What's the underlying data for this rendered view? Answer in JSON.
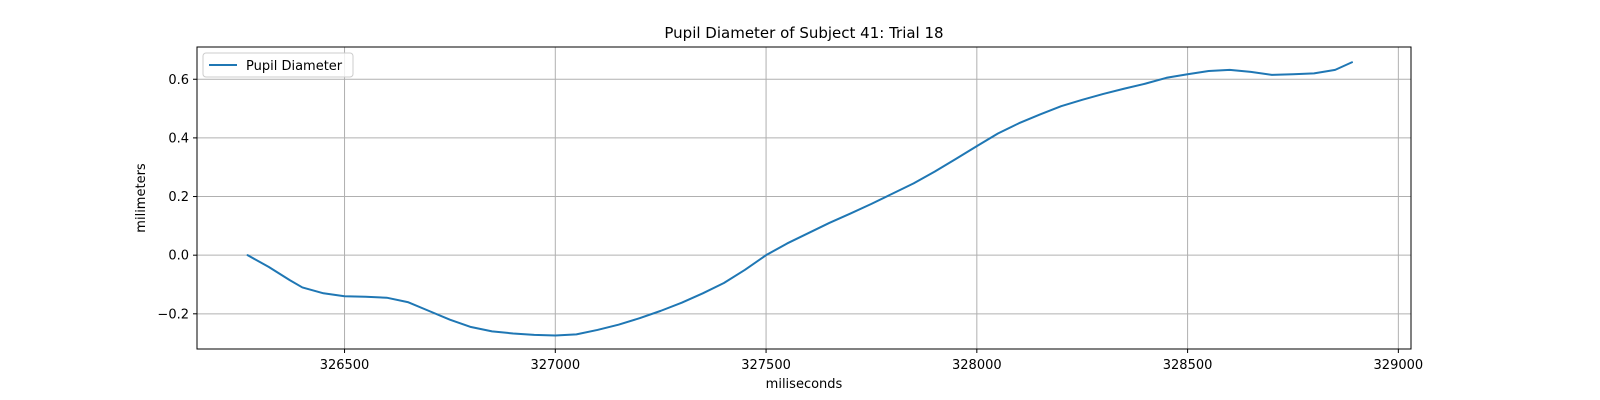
{
  "chart_data": {
    "type": "line",
    "title": "Pupil Diameter of Subject 41: Trial 18",
    "xlabel": "miliseconds",
    "ylabel": "milimeters",
    "xlim": [
      326150,
      329030
    ],
    "ylim": [
      -0.32,
      0.71
    ],
    "xticks": [
      326500,
      327000,
      327500,
      328000,
      328500,
      329000
    ],
    "yticks": [
      -0.2,
      0.0,
      0.2,
      0.4,
      0.6
    ],
    "xtick_labels": [
      "326500",
      "327000",
      "327500",
      "328000",
      "328500",
      "329000"
    ],
    "ytick_labels": [
      "−0.2",
      "0.0",
      "0.2",
      "0.4",
      "0.6"
    ],
    "grid": true,
    "legend_position": "upper-left",
    "series": [
      {
        "name": "Pupil Diameter",
        "color": "#1f77b4",
        "x": [
          326270,
          326320,
          326370,
          326400,
          326450,
          326500,
          326550,
          326600,
          326650,
          326700,
          326750,
          326800,
          326850,
          326900,
          326950,
          327000,
          327050,
          327100,
          327150,
          327200,
          327250,
          327300,
          327350,
          327400,
          327450,
          327500,
          327550,
          327600,
          327650,
          327700,
          327750,
          327800,
          327850,
          327900,
          327950,
          328000,
          328050,
          328100,
          328150,
          328200,
          328250,
          328300,
          328350,
          328400,
          328450,
          328500,
          328550,
          328600,
          328650,
          328700,
          328750,
          328800,
          328850,
          328890
        ],
        "y": [
          0.0,
          -0.04,
          -0.085,
          -0.11,
          -0.13,
          -0.14,
          -0.142,
          -0.145,
          -0.16,
          -0.19,
          -0.22,
          -0.245,
          -0.26,
          -0.267,
          -0.272,
          -0.274,
          -0.27,
          -0.255,
          -0.237,
          -0.215,
          -0.19,
          -0.162,
          -0.13,
          -0.095,
          -0.05,
          0.0,
          0.04,
          0.075,
          0.11,
          0.142,
          0.175,
          0.21,
          0.245,
          0.285,
          0.328,
          0.372,
          0.415,
          0.45,
          0.48,
          0.508,
          0.53,
          0.55,
          0.568,
          0.585,
          0.605,
          0.617,
          0.628,
          0.632,
          0.625,
          0.615,
          0.617,
          0.62,
          0.632,
          0.658
        ]
      }
    ]
  }
}
